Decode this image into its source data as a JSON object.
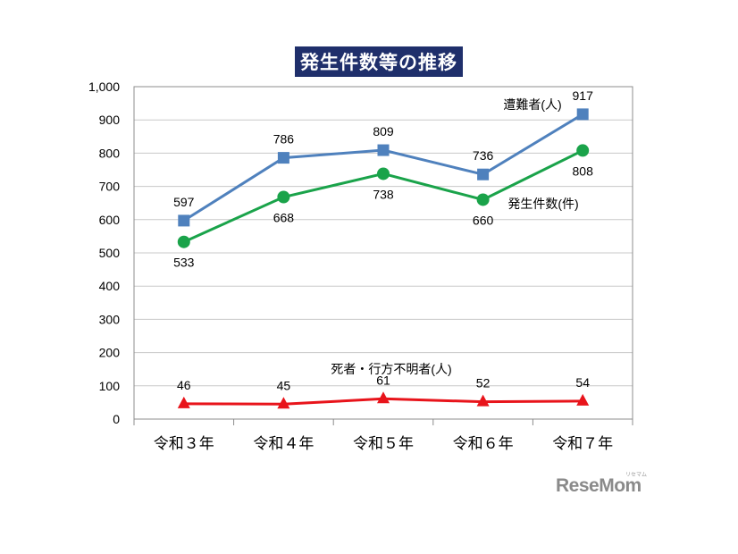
{
  "chart_data": {
    "type": "line",
    "title": "発生件数等の推移",
    "categories": [
      "令和３年",
      "令和４年",
      "令和５年",
      "令和６年",
      "令和７年"
    ],
    "ylim": [
      0,
      1000
    ],
    "yticks": [
      "0",
      "100",
      "200",
      "300",
      "400",
      "500",
      "600",
      "700",
      "800",
      "900",
      "1,000"
    ],
    "grid": true,
    "series": [
      {
        "name": "遭難者(人)",
        "color": "#4f81bd",
        "marker": "square",
        "values": [
          597,
          786,
          809,
          736,
          917
        ],
        "labels": [
          "597",
          "786",
          "809",
          "736",
          "917"
        ]
      },
      {
        "name": "発生件数(件)",
        "color": "#1aa34a",
        "marker": "circle",
        "values": [
          533,
          668,
          738,
          660,
          808
        ],
        "labels": [
          "533",
          "668",
          "738",
          "660",
          "808"
        ]
      },
      {
        "name": "死者・行方不明者(人)",
        "color": "#e8141b",
        "marker": "triangle",
        "values": [
          46,
          45,
          61,
          52,
          54
        ],
        "labels": [
          "46",
          "45",
          "61",
          "52",
          "54"
        ]
      }
    ]
  },
  "watermark": {
    "text": "ReseMom",
    "subtext": "リセマム"
  }
}
